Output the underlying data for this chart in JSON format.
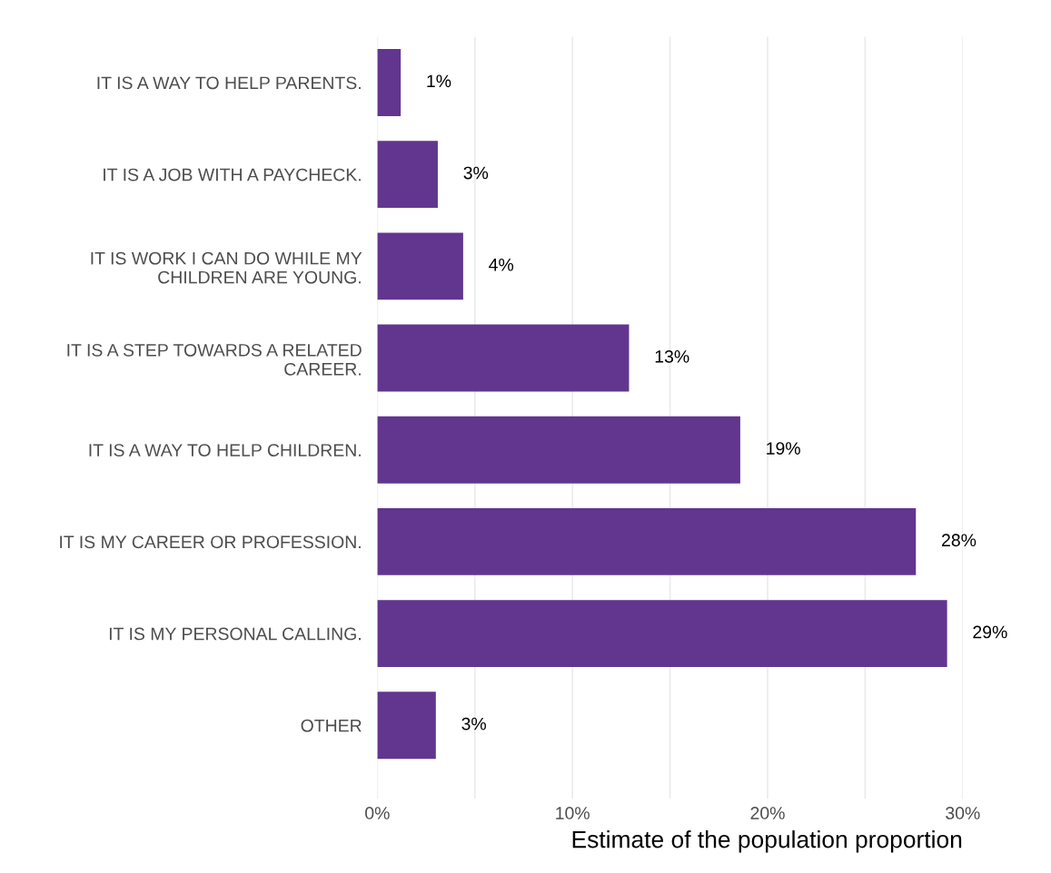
{
  "chart_data": {
    "type": "bar",
    "orientation": "horizontal",
    "categories": [
      "IT IS A WAY TO HELP PARENTS.",
      "IT IS A JOB WITH A PAYCHECK.",
      "IT IS WORK I CAN DO WHILE MY\nCHILDREN ARE YOUNG.",
      "IT IS A STEP TOWARDS A RELATED\nCAREER.",
      "IT IS A WAY TO HELP CHILDREN.",
      "IT IS MY CAREER OR PROFESSION.",
      "IT IS MY PERSONAL CALLING.",
      "OTHER"
    ],
    "values": [
      1.2,
      3.1,
      4.4,
      12.9,
      18.6,
      27.6,
      29.2,
      3.0
    ],
    "value_labels": [
      "1%",
      "3%",
      "4%",
      "13%",
      "19%",
      "28%",
      "29%",
      "3%"
    ],
    "color": "#62358f",
    "xlabel": "Estimate of the population proportion",
    "xlim": [
      0,
      30
    ],
    "xticks": [
      {
        "value": 0,
        "label": "0%"
      },
      {
        "value": 5,
        "label": null
      },
      {
        "value": 10,
        "label": "10%"
      },
      {
        "value": 15,
        "label": null
      },
      {
        "value": 20,
        "label": "20%"
      },
      {
        "value": 25,
        "label": null
      },
      {
        "value": 30,
        "label": "30%"
      }
    ],
    "grid": "x"
  }
}
